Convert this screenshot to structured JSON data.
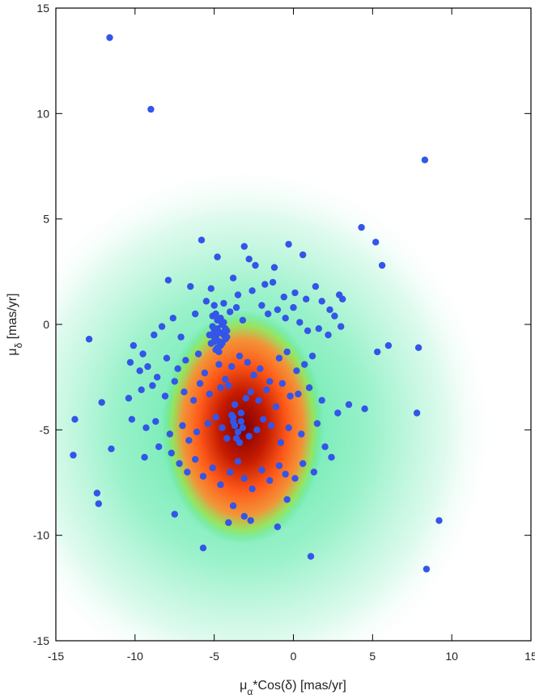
{
  "chart_data": {
    "type": "scatter",
    "title": "",
    "xlabel": "μ_α*Cos(δ) [mas/yr]",
    "ylabel": "μ_δ [mas/yr]",
    "xlim": [
      -15,
      15
    ],
    "ylim": [
      -15,
      15
    ],
    "x_ticks": [
      -15,
      -10,
      -5,
      0,
      5,
      10,
      15
    ],
    "y_ticks": [
      -15,
      -10,
      -5,
      0,
      5,
      10,
      15
    ],
    "grid": false,
    "background": {
      "type": "density",
      "description_colors": [
        "#ffffff",
        "#b8f5e0",
        "#3ee68a",
        "#7fe040",
        "#ff5a1a",
        "#8a0000"
      ],
      "peak": [
        -3.0,
        -5.0
      ]
    },
    "marker_color": "#3355e8",
    "series": [
      {
        "x": [
          -11.6,
          -9.0,
          8.3,
          -5.8,
          -4.8,
          -3.1,
          -2.8,
          -2.4,
          -1.2,
          -0.3,
          0.6,
          4.3,
          5.2,
          5.6,
          -7.9,
          -6.5,
          -5.2,
          -3.8,
          -3.5,
          -2.6,
          -1.8,
          -1.3,
          -0.6,
          0.1,
          0.8,
          1.4,
          1.8,
          2.9,
          3.1,
          2.3,
          -12.9,
          -10.1,
          -9.5,
          -8.8,
          -8.3,
          -7.6,
          -7.1,
          -6.2,
          -5.5,
          -5.0,
          -4.4,
          -4.0,
          -3.6,
          -3.2,
          -2.0,
          -1.6,
          -1.0,
          -0.5,
          0.0,
          0.4,
          0.9,
          1.6,
          2.2,
          2.6,
          3.0,
          5.3,
          6.0,
          7.9,
          -10.3,
          -9.7,
          -9.2,
          -8.6,
          -8.0,
          -7.3,
          -6.8,
          -6.0,
          -5.6,
          -4.7,
          -4.3,
          -3.9,
          -3.4,
          -2.9,
          -2.5,
          -2.1,
          -1.5,
          -0.9,
          -0.4,
          0.2,
          0.7,
          1.2,
          -12.1,
          -10.4,
          -9.6,
          -8.9,
          -8.1,
          -7.5,
          -6.9,
          -6.3,
          -5.9,
          -5.3,
          -4.6,
          -4.1,
          -3.7,
          -3.0,
          -2.7,
          -2.2,
          -1.7,
          -1.1,
          -0.7,
          -0.2,
          0.3,
          1.0,
          1.8,
          2.8,
          3.5,
          4.5,
          -13.8,
          -13.9,
          -11.5,
          -10.2,
          -9.3,
          -8.7,
          -7.8,
          -7.0,
          -6.6,
          -6.1,
          -5.4,
          -4.9,
          -4.5,
          -4.2,
          -3.8,
          -3.3,
          -2.8,
          -2.3,
          -1.9,
          -1.4,
          -0.8,
          -0.3,
          0.5,
          1.5,
          2.0,
          7.8,
          -12.4,
          -12.3,
          -9.4,
          -8.5,
          -7.7,
          -7.2,
          -6.7,
          -6.2,
          -5.7,
          -5.1,
          -4.6,
          -4.0,
          -3.5,
          -3.1,
          -2.6,
          -2.0,
          -1.5,
          -0.9,
          -0.5,
          0.1,
          0.6,
          1.3,
          2.4,
          -7.5,
          -5.7,
          -4.1,
          -3.8,
          -3.1,
          -2.7,
          -1.0,
          -0.4,
          1.1,
          8.4,
          9.2,
          -5.0,
          -4.9,
          -4.8,
          -4.7,
          -4.6,
          -4.5,
          -4.4,
          -5.2,
          -5.1,
          -4.3,
          -4.2,
          -5.3,
          -4.8,
          -4.6,
          -4.9,
          -4.4,
          -5.0,
          -4.7,
          -4.5,
          -5.1,
          -4.3,
          -4.8,
          -4.6,
          -4.9,
          -4.2,
          -5.0,
          -4.7,
          -4.5,
          -3.9,
          -3.7,
          -3.5,
          -3.3,
          -3.6,
          -3.2,
          -3.8,
          -3.4
        ],
        "y": [
          13.6,
          10.2,
          7.8,
          4.0,
          3.2,
          3.7,
          3.1,
          2.8,
          2.7,
          3.8,
          3.3,
          4.6,
          3.9,
          2.8,
          2.1,
          1.8,
          1.7,
          2.2,
          1.4,
          1.6,
          1.9,
          2.0,
          1.3,
          1.5,
          1.2,
          1.8,
          1.1,
          1.4,
          1.2,
          0.7,
          -0.7,
          -1.0,
          -1.4,
          -0.5,
          -0.1,
          0.3,
          -0.6,
          0.5,
          1.1,
          0.9,
          1.0,
          0.6,
          0.8,
          0.2,
          0.9,
          0.5,
          0.7,
          0.3,
          0.8,
          0.1,
          -0.3,
          -0.2,
          -0.5,
          0.4,
          -0.1,
          -1.3,
          -1.0,
          -1.1,
          -1.8,
          -2.2,
          -2.0,
          -2.5,
          -1.6,
          -2.1,
          -1.7,
          -1.4,
          -2.3,
          -1.9,
          -2.6,
          -2.0,
          -1.5,
          -1.8,
          -2.4,
          -2.1,
          -2.7,
          -1.6,
          -1.3,
          -2.2,
          -1.9,
          -1.5,
          -3.7,
          -3.5,
          -3.1,
          -2.9,
          -3.4,
          -2.7,
          -3.2,
          -3.6,
          -2.8,
          -3.3,
          -3.0,
          -2.9,
          -3.8,
          -3.5,
          -3.2,
          -3.6,
          -3.1,
          -3.9,
          -2.8,
          -3.4,
          -3.3,
          -3.0,
          -3.6,
          -4.2,
          -3.8,
          -4.0,
          -4.5,
          -6.2,
          -5.9,
          -4.5,
          -4.9,
          -4.6,
          -5.2,
          -4.8,
          -5.5,
          -5.1,
          -4.7,
          -4.4,
          -4.9,
          -5.4,
          -4.6,
          -4.2,
          -5.3,
          -5.0,
          -4.5,
          -4.8,
          -5.6,
          -4.9,
          -5.2,
          -4.7,
          -5.8,
          -4.2,
          -8.0,
          -8.5,
          -6.3,
          -5.8,
          -6.1,
          -6.6,
          -7.0,
          -6.4,
          -7.2,
          -6.8,
          -7.6,
          -7.0,
          -6.5,
          -7.3,
          -7.8,
          -6.9,
          -7.4,
          -6.7,
          -7.1,
          -7.3,
          -6.6,
          -7.0,
          -6.3,
          -9.0,
          -10.6,
          -9.4,
          -8.6,
          -9.1,
          -9.3,
          -9.6,
          -8.3,
          -11.0,
          -11.6,
          -9.3,
          -0.3,
          -0.6,
          -0.2,
          -0.8,
          -0.4,
          0.0,
          -0.5,
          -0.9,
          -0.1,
          -0.7,
          -0.3,
          -0.5,
          0.2,
          -1.0,
          -1.2,
          0.1,
          -0.6,
          -0.4,
          -0.9,
          0.4,
          -0.2,
          -1.1,
          0.3,
          0.5,
          -0.6,
          -0.8,
          -1.3,
          0.0,
          -4.3,
          -4.8,
          -5.1,
          -4.6,
          -5.4,
          -4.9,
          -4.4,
          -5.6
        ]
      }
    ]
  }
}
